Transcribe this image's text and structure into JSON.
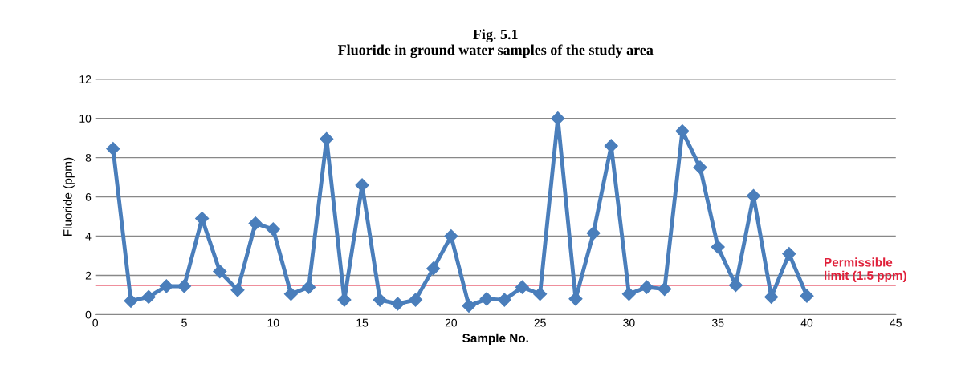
{
  "chart_data": {
    "type": "line",
    "title": "Fig. 5.1\nFluoride in ground water samples of the study area",
    "xlabel": "Sample No.",
    "ylabel": "Fluoride (ppm)",
    "x": [
      1,
      2,
      3,
      4,
      5,
      6,
      7,
      8,
      9,
      10,
      11,
      12,
      13,
      14,
      15,
      16,
      17,
      18,
      19,
      20,
      21,
      22,
      23,
      24,
      25,
      26,
      27,
      28,
      29,
      30,
      31,
      32,
      33,
      34,
      35,
      36,
      37,
      38,
      39,
      40
    ],
    "series": [
      {
        "color": "#4a7ebb",
        "values": [
          8.45,
          0.7,
          0.9,
          1.45,
          1.45,
          4.9,
          2.2,
          1.25,
          4.65,
          4.35,
          1.05,
          1.4,
          8.95,
          0.75,
          6.6,
          0.75,
          0.55,
          0.75,
          2.35,
          4.0,
          0.45,
          0.8,
          0.75,
          1.4,
          1.05,
          10.0,
          0.8,
          4.15,
          8.6,
          1.05,
          1.4,
          1.3,
          9.35,
          7.5,
          3.45,
          1.5,
          6.05,
          0.9,
          3.1,
          0.95
        ]
      }
    ],
    "xlim": [
      0,
      45
    ],
    "xticks": [
      0,
      5,
      10,
      15,
      20,
      25,
      30,
      35,
      40,
      45
    ],
    "ylim": [
      0,
      12
    ],
    "yticks": [
      0,
      2,
      4,
      6,
      8,
      10,
      12
    ],
    "grid": "y",
    "marker": "diamond",
    "line_style": "solid",
    "ref_lines": [
      {
        "axis": "y",
        "value": 1.5,
        "label": "Permissible\nlimit (1.5 ppm)",
        "color": "#e0203a"
      }
    ]
  }
}
